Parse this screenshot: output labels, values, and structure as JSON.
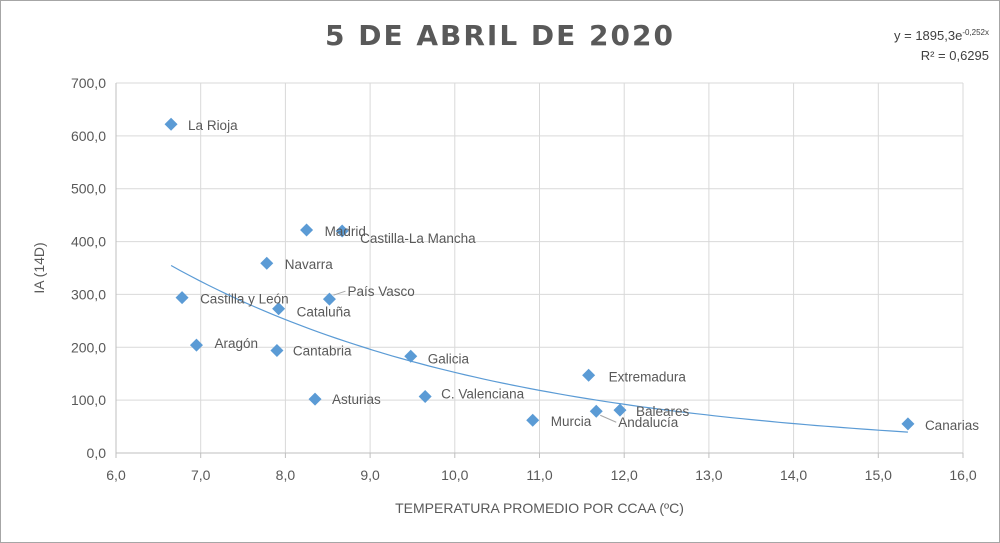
{
  "chart_data": {
    "type": "scatter",
    "title": "5 DE ABRIL DE 2020",
    "xlabel": "TEMPERATURA  PROMEDIO POR CCAA (ºC)",
    "ylabel": "IA (14D)",
    "xlim": [
      6.0,
      16.0
    ],
    "ylim": [
      0.0,
      700.0
    ],
    "x_ticks": [
      "6,0",
      "7,0",
      "8,0",
      "9,0",
      "10,0",
      "11,0",
      "12,0",
      "13,0",
      "14,0",
      "15,0",
      "16,0"
    ],
    "y_ticks": [
      "0,0",
      "100,0",
      "200,0",
      "300,0",
      "400,0",
      "500,0",
      "600,0",
      "700,0"
    ],
    "grid": true,
    "legend": "none",
    "marker_color": "#5b9bd5",
    "trendline_color": "#5b9bd5",
    "points": [
      {
        "label": "La Rioja",
        "x": 6.65,
        "y": 622
      },
      {
        "label": "Madrid",
        "x": 8.25,
        "y": 422
      },
      {
        "label": "Castilla-La Mancha",
        "x": 8.67,
        "y": 420
      },
      {
        "label": "Navarra",
        "x": 7.78,
        "y": 359
      },
      {
        "label": "Castilla y León",
        "x": 6.78,
        "y": 294
      },
      {
        "label": "País Vasco",
        "x": 8.52,
        "y": 291
      },
      {
        "label": "Cataluña",
        "x": 7.92,
        "y": 273
      },
      {
        "label": "Aragón",
        "x": 6.95,
        "y": 204
      },
      {
        "label": "Cantabria",
        "x": 7.9,
        "y": 194
      },
      {
        "label": "Galicia",
        "x": 9.48,
        "y": 183
      },
      {
        "label": "Extremadura",
        "x": 11.58,
        "y": 147
      },
      {
        "label": "Asturias",
        "x": 8.35,
        "y": 102
      },
      {
        "label": "C. Valenciana",
        "x": 9.65,
        "y": 107
      },
      {
        "label": "Murcia",
        "x": 10.92,
        "y": 62
      },
      {
        "label": "Andalucía",
        "x": 11.67,
        "y": 79
      },
      {
        "label": "Baleares",
        "x": 11.95,
        "y": 81
      },
      {
        "label": "Canarias",
        "x": 15.35,
        "y": 55
      }
    ],
    "trendline": {
      "type": "exponential",
      "a": 1895.3,
      "b": -0.252,
      "x_range": [
        6.65,
        15.35
      ],
      "equation": {
        "prefix": "y = 1895,3e",
        "exponent": "-0,252x"
      },
      "r2_text": "R² = 0,6295"
    }
  }
}
